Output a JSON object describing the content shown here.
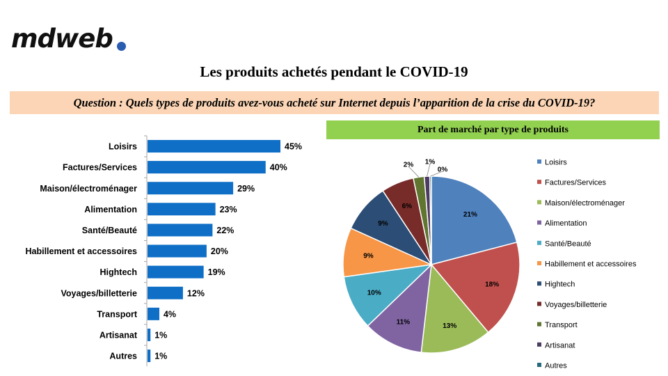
{
  "logo": {
    "text": "mdweb",
    "dot_color": "#2a5db0"
  },
  "title": "Les produits achetés pendant le COVID-19",
  "question": "Question : Quels types de produits avez-vous acheté sur Internet depuis l’apparition de la crise du COVID-19?",
  "pie_header": "Part de marché par type de produits",
  "chart_data": [
    {
      "type": "bar",
      "orientation": "horizontal",
      "categories": [
        "Loisirs",
        "Factures/Services",
        "Maison/électroménager",
        "Alimentation",
        "Santé/Beauté",
        "Habillement et accessoires",
        "Hightech",
        "Voyages/billetterie",
        "Transport",
        "Artisanat",
        "Autres"
      ],
      "values": [
        45,
        40,
        29,
        23,
        22,
        20,
        19,
        12,
        4,
        1,
        1
      ],
      "value_labels": [
        "45%",
        "40%",
        "29%",
        "23%",
        "22%",
        "20%",
        "19%",
        "12%",
        "4%",
        "1%",
        "1%"
      ],
      "color": "#0f6fc6"
    },
    {
      "type": "pie",
      "title": "Part de marché par type de produits",
      "legend_position": "right",
      "categories": [
        "Loisirs",
        "Factures/Services",
        "Maison/électroménager",
        "Alimentation",
        "Santé/Beauté",
        "Habillement et accessoires",
        "Hightech",
        "Voyages/billetterie",
        "Transport",
        "Artisanat",
        "Autres"
      ],
      "values": [
        21,
        18,
        13,
        11,
        10,
        9,
        9,
        6,
        2,
        1,
        0.3
      ],
      "value_labels": [
        "21%",
        "18%",
        "13%",
        "11%",
        "10%",
        "9%",
        "9%",
        "6%",
        "2%",
        "1%",
        "0%"
      ],
      "colors": [
        "#4f81bd",
        "#c0504d",
        "#9bbb59",
        "#8064a2",
        "#4bacc6",
        "#f79646",
        "#2c4d75",
        "#772c2a",
        "#5f7530",
        "#4d3b62",
        "#276a7c"
      ]
    }
  ]
}
